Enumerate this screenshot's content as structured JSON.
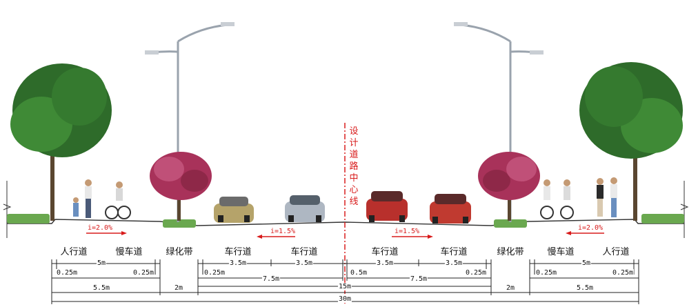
{
  "centerline_label": "设计道路中心线",
  "lane_labels": {
    "sidewalk_left": "人行道",
    "bike_left": "慢车道",
    "green_left": "绿化带",
    "car_left_outer": "车行道",
    "car_left_inner": "车行道",
    "car_right_inner": "车行道",
    "car_right_outer": "车行道",
    "green_right": "绿化带",
    "bike_right": "慢车道",
    "sidewalk_right": "人行道"
  },
  "slopes": {
    "left_side": "i=2.0%",
    "left_carriageway": "i=1.5%",
    "right_carriageway": "i=1.5%",
    "right_side": "i=2.0%"
  },
  "dimensions": {
    "side_5m_left": "5m",
    "curb_a_left": "0.25m",
    "curb_b_left": "0.25m",
    "side_total_left": "5.5m",
    "green_left": "2m",
    "lane_l1": "3.5m",
    "lane_l2": "3.5m",
    "curb_lane_left": "0.25m",
    "carriage_left": "7.5m",
    "lane_r1": "3.5m",
    "lane_r2": "3.5m",
    "curb_center_right": "0.5m",
    "curb_lane_right": "0.25m",
    "carriage_right": "7.5m",
    "carriageway_total": "15m",
    "green_right": "2m",
    "side_5m_right": "5m",
    "curb_a_right": "0.25m",
    "curb_b_right": "0.25m",
    "side_total_right": "5.5m",
    "total_width": "30m"
  },
  "colors": {
    "centerline": "#d81b1b",
    "road_edge": "#333333",
    "hedge": "#6aa84f",
    "tree_canopy": "#2e6b2a",
    "blossom_tree": "#a8325a",
    "pole": "#9aa3ad"
  }
}
